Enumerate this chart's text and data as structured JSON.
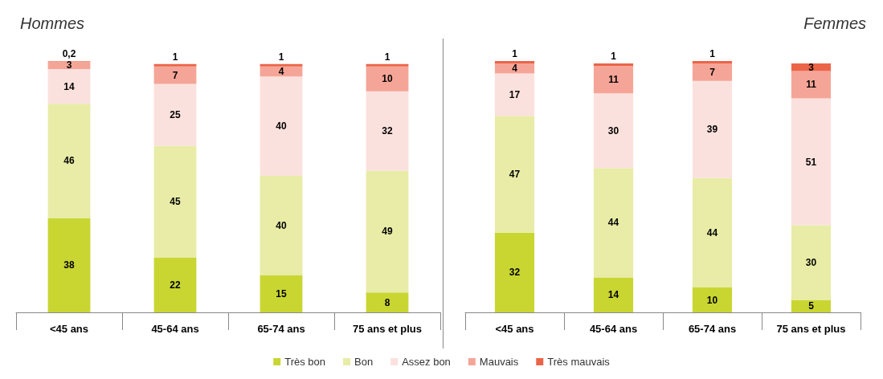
{
  "chart_data": [
    {
      "type": "bar",
      "title": "Hommes",
      "stacked": true,
      "legend": "bottom",
      "categories": [
        "<45 ans",
        "45-64 ans",
        "65-74 ans",
        "75 ans et plus"
      ],
      "series": [
        {
          "name": "Très bon",
          "color": "#c9d632",
          "values": [
            38,
            22,
            15,
            8
          ],
          "value_labels": [
            "38",
            "22",
            "15",
            "8"
          ]
        },
        {
          "name": "Bon",
          "color": "#e8eca6",
          "values": [
            46,
            45,
            40,
            49
          ],
          "value_labels": [
            "46",
            "45",
            "40",
            "49"
          ]
        },
        {
          "name": "Assez bon",
          "color": "#fbe1dd",
          "values": [
            14,
            25,
            40,
            32
          ],
          "value_labels": [
            "14",
            "25",
            "40",
            "32"
          ]
        },
        {
          "name": "Mauvais",
          "color": "#f5a597",
          "values": [
            3,
            7,
            4,
            10
          ],
          "value_labels": [
            "3",
            "7",
            "4",
            "10"
          ]
        },
        {
          "name": "Très mauvais",
          "color": "#ec6448",
          "values": [
            0.2,
            1,
            1,
            1
          ],
          "value_labels": [
            "0,2",
            "1",
            "1",
            "1"
          ]
        }
      ]
    },
    {
      "type": "bar",
      "title": "Femmes",
      "stacked": true,
      "legend": false,
      "categories": [
        "<45 ans",
        "45-64 ans",
        "65-74 ans",
        "75 ans et plus"
      ],
      "series": [
        {
          "color": "#c9d632",
          "values": [
            32,
            14,
            10,
            5
          ],
          "value_labels": [
            "32",
            "14",
            "10",
            "5"
          ]
        },
        {
          "color": "#e8eca6",
          "values": [
            47,
            44,
            44,
            30
          ],
          "value_labels": [
            "47",
            "44",
            "44",
            "30"
          ]
        },
        {
          "color": "#fbe1dd",
          "values": [
            17,
            30,
            39,
            51
          ],
          "value_labels": [
            "17",
            "30",
            "39",
            "51"
          ]
        },
        {
          "color": "#f5a597",
          "values": [
            4,
            11,
            7,
            11
          ],
          "value_labels": [
            "4",
            "11",
            "7",
            "11"
          ]
        },
        {
          "color": "#ec6448",
          "values": [
            1,
            1,
            1,
            3
          ],
          "value_labels": [
            "1",
            "1",
            "1",
            "3"
          ]
        }
      ]
    }
  ]
}
